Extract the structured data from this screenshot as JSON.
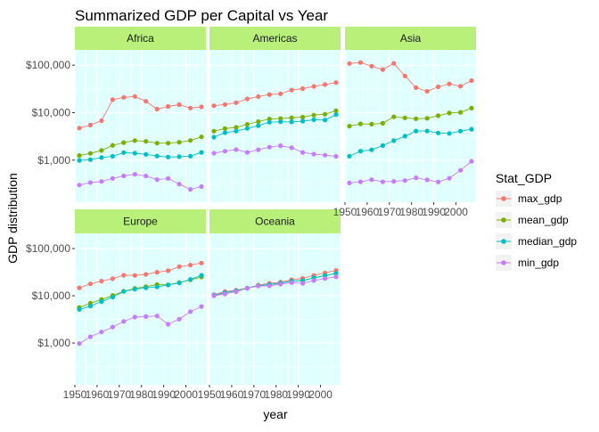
{
  "chart_data": {
    "type": "line",
    "title": "Summarized GDP per Capital vs Year",
    "xlabel": "year",
    "ylabel": "GDP distribution",
    "y_scale": "log10",
    "ylim": [
      130,
      210000
    ],
    "xlim": [
      1950,
      2009
    ],
    "x_ticks": [
      1950,
      1960,
      1970,
      1980,
      1990,
      2000
    ],
    "y_ticks": [
      {
        "value": 1000,
        "label": "$1,000"
      },
      {
        "value": 10000,
        "label": "$10,000"
      },
      {
        "value": 100000,
        "label": "$100,000"
      }
    ],
    "grid": true,
    "panel_background": "#e0ffff",
    "strip_background": "#b8f07a",
    "legend": {
      "title": "Stat_GDP",
      "position": "right",
      "entries": [
        {
          "name": "max_gdp",
          "color": "#F8766D"
        },
        {
          "name": "mean_gdp",
          "color": "#7CAE00"
        },
        {
          "name": "median_gdp",
          "color": "#00BFC4"
        },
        {
          "name": "min_gdp",
          "color": "#C77CFF"
        }
      ]
    },
    "x": [
      1952,
      1957,
      1962,
      1967,
      1972,
      1977,
      1982,
      1987,
      1992,
      1997,
      2002,
      2007
    ],
    "facets": [
      {
        "name": "Africa",
        "series": [
          {
            "name": "max_gdp",
            "values": [
              4725,
              5487,
              6757,
              18773,
              21011,
              21951,
              17364,
              11864,
              13522,
              14723,
              12522,
              13206
            ]
          },
          {
            "name": "mean_gdp",
            "values": [
              1253,
              1385,
              1598,
              2050,
              2340,
              2586,
              2482,
              2283,
              2282,
              2379,
              2599,
              3089
            ]
          },
          {
            "name": "median_gdp",
            "values": [
              987,
              1024,
              1134,
              1210,
              1443,
              1400,
              1324,
              1220,
              1162,
              1180,
              1215,
              1452
            ]
          },
          {
            "name": "min_gdp",
            "values": [
              299,
              336,
              355,
              412,
              464,
              502,
              462,
              390,
              410,
              312,
              241,
              277
            ]
          }
        ]
      },
      {
        "name": "Americas",
        "series": [
          {
            "name": "max_gdp",
            "values": [
              13990,
              14847,
              16173,
              19530,
              21806,
              24073,
              25010,
              29884,
              32004,
              35767,
              39097,
              42952
            ]
          },
          {
            "name": "mean_gdp",
            "values": [
              4079,
              4616,
              4902,
              5668,
              6491,
              7352,
              7507,
              7793,
              8045,
              8889,
              9288,
              11003
            ]
          },
          {
            "name": "median_gdp",
            "values": [
              3048,
              3781,
              4086,
              4643,
              5305,
              6281,
              6434,
              6360,
              6618,
              7113,
              6994,
              9066
            ]
          },
          {
            "name": "min_gdp",
            "values": [
              1398,
              1544,
              1662,
              1452,
              1654,
              1874,
              2012,
              1823,
              1456,
              1342,
              1270,
              1202
            ]
          }
        ]
      },
      {
        "name": "Asia",
        "series": [
          {
            "name": "max_gdp",
            "values": [
              108382,
              113523,
              95458,
              80895,
              109348,
              59265,
              33693,
              28118,
              34933,
              40301,
              36023,
              47307
            ]
          },
          {
            "name": "mean_gdp",
            "values": [
              5195,
              5788,
              5729,
              5971,
              8187,
              7791,
              7435,
              7608,
              8640,
              9834,
              10174,
              12473
            ]
          },
          {
            "name": "median_gdp",
            "values": [
              1207,
              1548,
              1650,
              2029,
              2571,
              3195,
              4106,
              4106,
              3726,
              3645,
              4091,
              4471
            ]
          },
          {
            "name": "min_gdp",
            "values": [
              331,
              350,
              388,
              349,
              357,
              371,
              424,
              385,
              347,
              415,
              611,
              944
            ]
          }
        ]
      },
      {
        "name": "Europe",
        "series": [
          {
            "name": "max_gdp",
            "values": [
              14734,
              17909,
              20431,
              22966,
              27195,
              26982,
              28398,
              31541,
              33966,
              41283,
              44684,
              49357
            ]
          },
          {
            "name": "mean_gdp",
            "values": [
              5661,
              6963,
              8365,
              10144,
              12480,
              14284,
              15618,
              17235,
              17061,
              19077,
              21712,
              25055
            ]
          },
          {
            "name": "median_gdp",
            "values": [
              5143,
              6067,
              7515,
              9366,
              12327,
              13748,
              14771,
              15390,
              17065,
              18736,
              22163,
              27170
            ]
          },
          {
            "name": "min_gdp",
            "values": [
              973,
              1354,
              1710,
              2172,
              2860,
              3528,
              3631,
              3739,
              2497,
              3193,
              4604,
              5937
            ]
          }
        ]
      },
      {
        "name": "Oceania",
        "series": [
          {
            "name": "max_gdp",
            "values": [
              10556,
              12247,
              13175,
              14526,
              16789,
              18334,
              19477,
              21889,
              23425,
              26998,
              30688,
              34435
            ]
          },
          {
            "name": "mean_gdp",
            "values": [
              10298,
              11599,
              12696,
              14495,
              16417,
              17284,
              18555,
              20448,
              20894,
              24024,
              26939,
              29810
            ]
          },
          {
            "name": "median_gdp",
            "values": [
              10298,
              11599,
              12696,
              14495,
              16417,
              17284,
              18555,
              20448,
              20894,
              24024,
              26939,
              29810
            ]
          },
          {
            "name": "min_gdp",
            "values": [
              10040,
              10950,
              12217,
              14463,
              16046,
              16234,
              17632,
              19007,
              18363,
              21050,
              23190,
              25185
            ]
          }
        ]
      }
    ]
  }
}
